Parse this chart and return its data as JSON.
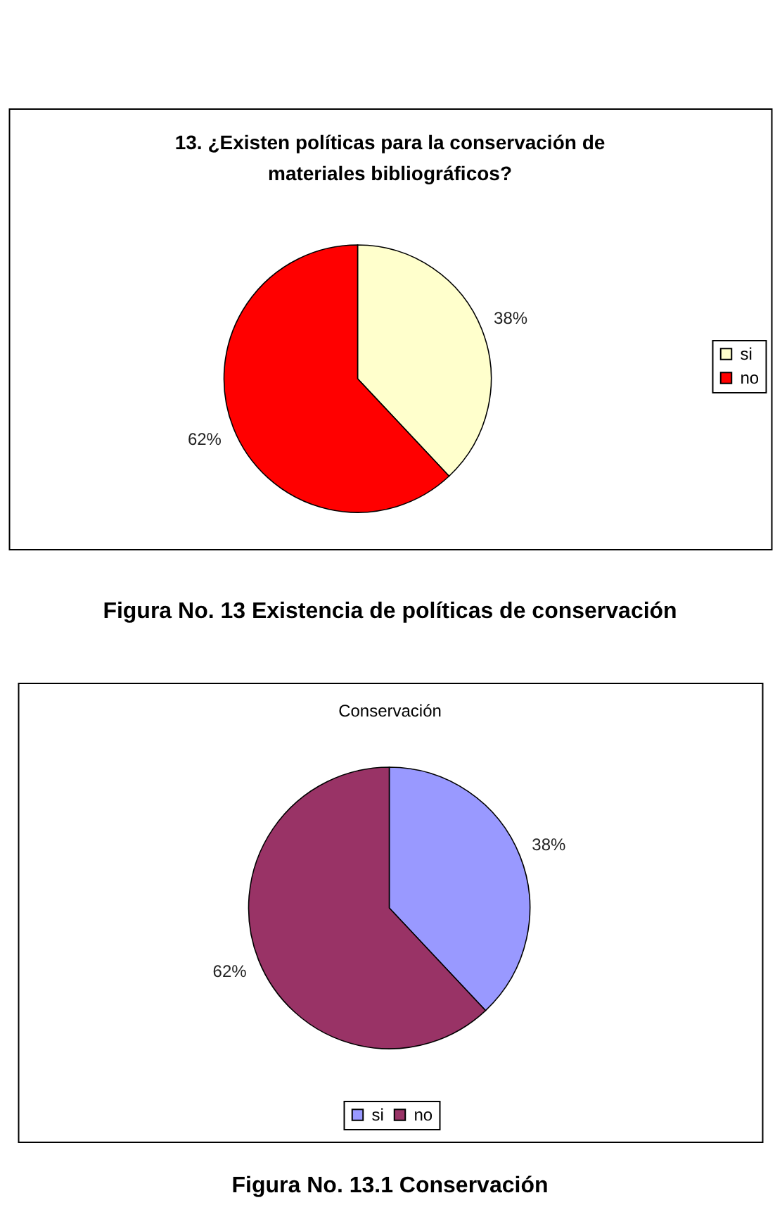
{
  "chart_data": [
    {
      "type": "pie",
      "title": "13. ¿Existen políticas para la conservación de materiales bibliográficos?",
      "categories": [
        "si",
        "no"
      ],
      "values": [
        38,
        62
      ],
      "colors": [
        "#ffffcc",
        "#ff0000"
      ],
      "value_labels": [
        "38%",
        "62%"
      ],
      "legend": "right",
      "annotations": [
        "Figura No. 13 Existencia de políticas de conservación"
      ]
    },
    {
      "type": "pie",
      "title": "Conservación",
      "categories": [
        "si",
        "no"
      ],
      "values": [
        38,
        62
      ],
      "colors": [
        "#9999ff",
        "#993366"
      ],
      "value_labels": [
        "38%",
        "62%"
      ],
      "legend": "bottom",
      "annotations": [
        "Figura No. 13.1 Conservación"
      ]
    }
  ]
}
